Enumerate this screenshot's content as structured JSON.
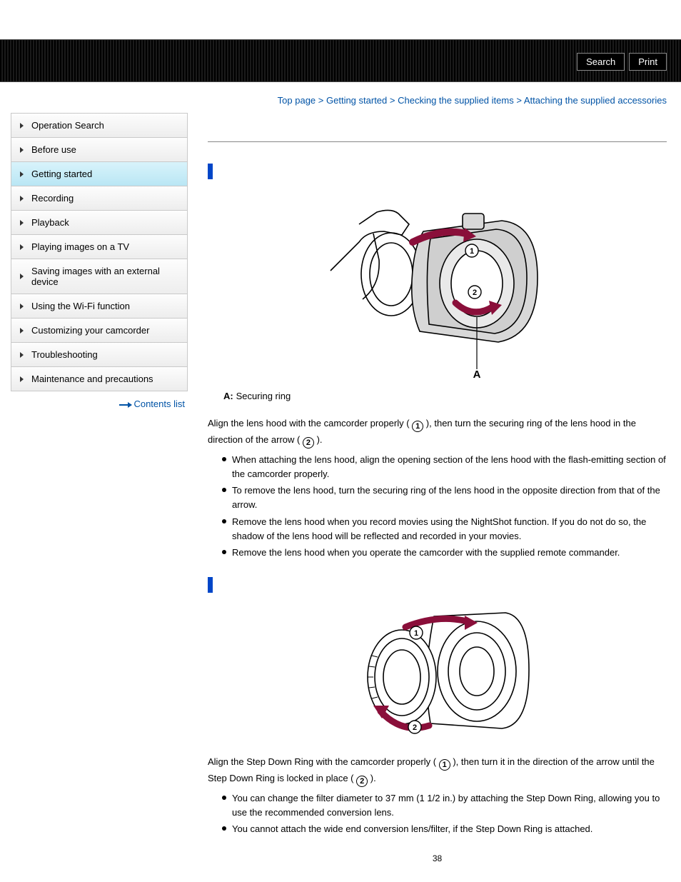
{
  "banner": {
    "search_label": "Search",
    "print_label": "Print"
  },
  "breadcrumb": {
    "items": [
      "Top page",
      "Getting started",
      "Checking the supplied items"
    ],
    "current": "Attaching the supplied accessories",
    "separator": " > "
  },
  "sidebar": {
    "items": [
      {
        "label": "Operation Search",
        "active": false
      },
      {
        "label": "Before use",
        "active": false
      },
      {
        "label": "Getting started",
        "active": true
      },
      {
        "label": "Recording",
        "active": false
      },
      {
        "label": "Playback",
        "active": false
      },
      {
        "label": "Playing images on a TV",
        "active": false
      },
      {
        "label": "Saving images with an external device",
        "active": false
      },
      {
        "label": "Using the Wi-Fi function",
        "active": false
      },
      {
        "label": "Customizing your camcorder",
        "active": false
      },
      {
        "label": "Troubleshooting",
        "active": false
      },
      {
        "label": "Maintenance and precautions",
        "active": false
      }
    ],
    "contents_link": "Contents list"
  },
  "section1": {
    "figure_label_A": "A",
    "circ1": "1",
    "circ2": "2",
    "caption_A": "Securing ring",
    "para_part1": "Align the lens hood with the camcorder properly (",
    "para_part2": "), then turn the securing ring of the lens hood in the direction of the arrow (",
    "para_part3": ").",
    "bullets": [
      "When attaching the lens hood, align the opening section of the lens hood with the flash-emitting section of the camcorder properly.",
      "To remove the lens hood, turn the securing ring of the lens hood in the opposite direction from that of the arrow.",
      "Remove the lens hood when you record movies using the NightShot function. If you do not do so, the shadow of the lens hood will be reflected and recorded in your movies.",
      "Remove the lens hood when you operate the camcorder with the supplied remote commander."
    ]
  },
  "section2": {
    "circ1": "1",
    "circ2": "2",
    "para_part1": "Align the Step Down Ring with the camcorder properly (",
    "para_part2": "), then turn it in the direction of the arrow until the Step Down Ring is locked in place (",
    "para_part3": ").",
    "bullets": [
      "You can change the filter diameter to 37 mm (1 1/2 in.) by attaching the Step Down Ring, allowing you to use the recommended conversion lens.",
      "You cannot attach the wide end conversion lens/filter, if the Step Down Ring is attached."
    ]
  },
  "page_number": "38",
  "colors": {
    "link": "#0053a6",
    "accent_bar": "#0046c8",
    "sidebar_active_top": "#d8f3fb",
    "sidebar_active_bottom": "#b9e6f4"
  }
}
